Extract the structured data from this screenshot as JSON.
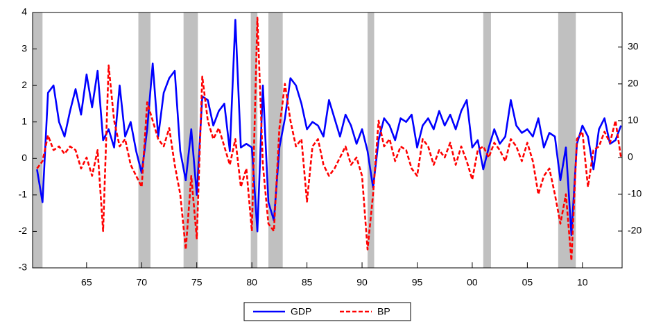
{
  "chart_data": {
    "type": "line",
    "x": [
      1960.5,
      1961,
      1961.5,
      1962,
      1962.5,
      1963,
      1963.5,
      1964,
      1964.5,
      1965,
      1965.5,
      1966,
      1966.5,
      1967,
      1967.5,
      1968,
      1968.5,
      1969,
      1969.5,
      1970,
      1970.5,
      1971,
      1971.5,
      1972,
      1972.5,
      1973,
      1973.5,
      1974,
      1974.5,
      1975,
      1975.5,
      1976,
      1976.5,
      1977,
      1977.5,
      1978,
      1978.5,
      1979,
      1979.5,
      1980,
      1980.5,
      1981,
      1981.5,
      1982,
      1982.5,
      1983,
      1983.5,
      1984,
      1984.5,
      1985,
      1985.5,
      1986,
      1986.5,
      1987,
      1987.5,
      1988,
      1988.5,
      1989,
      1989.5,
      1990,
      1990.5,
      1991,
      1991.5,
      1992,
      1992.5,
      1993,
      1993.5,
      1994,
      1994.5,
      1995,
      1995.5,
      1996,
      1996.5,
      1997,
      1997.5,
      1998,
      1998.5,
      1999,
      1999.5,
      2000,
      2000.5,
      2001,
      2001.5,
      2002,
      2002.5,
      2003,
      2003.5,
      2004,
      2004.5,
      2005,
      2005.5,
      2006,
      2006.5,
      2007,
      2007.5,
      2008,
      2008.5,
      2009,
      2009.5,
      2010,
      2010.5,
      2011,
      2011.5,
      2012,
      2012.5,
      2013,
      2013.5
    ],
    "series": [
      {
        "name": "GDP",
        "color": "#0000ff",
        "line_style": "solid",
        "axis": "y",
        "values": [
          -0.3,
          -1.2,
          1.8,
          2.0,
          1.0,
          0.6,
          1.3,
          1.9,
          1.2,
          2.3,
          1.4,
          2.4,
          0.5,
          0.8,
          0.3,
          2.0,
          0.6,
          1.0,
          0.2,
          -0.4,
          0.8,
          2.6,
          0.6,
          1.8,
          2.2,
          2.4,
          0.2,
          -0.6,
          0.8,
          -1.0,
          1.7,
          1.6,
          0.9,
          1.3,
          1.5,
          0.2,
          3.8,
          0.3,
          0.4,
          0.3,
          -2.0,
          2.0,
          -1.2,
          -1.7,
          0.3,
          1.1,
          2.2,
          2.0,
          1.5,
          0.8,
          1.0,
          0.9,
          0.6,
          1.6,
          1.1,
          0.6,
          1.2,
          0.9,
          0.4,
          0.8,
          0.2,
          -0.8,
          0.5,
          1.1,
          0.9,
          0.5,
          1.1,
          1.0,
          1.2,
          0.3,
          0.9,
          1.1,
          0.8,
          1.3,
          0.9,
          1.2,
          0.8,
          1.3,
          1.6,
          0.3,
          0.5,
          -0.3,
          0.3,
          0.8,
          0.4,
          0.6,
          1.6,
          0.9,
          0.7,
          0.8,
          0.6,
          1.1,
          0.3,
          0.7,
          0.6,
          -0.6,
          0.3,
          -2.1,
          0.4,
          0.9,
          0.6,
          -0.3,
          0.8,
          1.1,
          0.4,
          0.5,
          0.9
        ]
      },
      {
        "name": "BP",
        "color": "#ff0000",
        "line_style": "dashed",
        "axis": "y2",
        "values": [
          -3,
          -1,
          6,
          2,
          3,
          1,
          3,
          2,
          -3,
          0,
          -5,
          2,
          -20,
          25,
          10,
          3,
          5,
          -2,
          -5,
          -8,
          15,
          10,
          5,
          3,
          8,
          -2,
          -10,
          -25,
          -5,
          -22,
          22,
          10,
          5,
          8,
          3,
          -2,
          5,
          -8,
          -3,
          -20,
          38,
          -2,
          -18,
          -20,
          8,
          20,
          10,
          3,
          5,
          -12,
          3,
          5,
          -2,
          -5,
          -3,
          0,
          3,
          -2,
          0,
          -5,
          -25,
          -10,
          10,
          3,
          5,
          -1,
          3,
          2,
          -3,
          -5,
          5,
          3,
          -2,
          2,
          0,
          4,
          -2,
          3,
          -1,
          -6,
          2,
          3,
          0,
          4,
          2,
          -1,
          5,
          3,
          -1,
          4,
          -1,
          -10,
          -5,
          -3,
          -10,
          -18,
          -10,
          -28,
          5,
          7,
          -8,
          2,
          3,
          7,
          4,
          10,
          0
        ]
      }
    ],
    "xlim": [
      1960.1,
      2013.6
    ],
    "xticks": [
      {
        "value": 1965,
        "label": "65"
      },
      {
        "value": 1970,
        "label": "70"
      },
      {
        "value": 1975,
        "label": "75"
      },
      {
        "value": 1980,
        "label": "80"
      },
      {
        "value": 1985,
        "label": "85"
      },
      {
        "value": 1990,
        "label": "90"
      },
      {
        "value": 1995,
        "label": "95"
      },
      {
        "value": 2000,
        "label": "00"
      },
      {
        "value": 2005,
        "label": "05"
      },
      {
        "value": 2010,
        "label": "10"
      }
    ],
    "ylim": [
      -3,
      4
    ],
    "yticks": [
      -3,
      -2,
      -1,
      0,
      1,
      2,
      3,
      4
    ],
    "y2lim": [
      -30,
      39.4
    ],
    "y2ticks": [
      -20,
      -10,
      0,
      10,
      20,
      30
    ],
    "recessions": [
      [
        1960.1,
        1961.0
      ],
      [
        1969.7,
        1970.8
      ],
      [
        1973.8,
        1975.1
      ],
      [
        1979.9,
        1980.5
      ],
      [
        1981.5,
        1982.8
      ],
      [
        1990.5,
        1991.1
      ],
      [
        2001.0,
        2001.7
      ],
      [
        2007.8,
        2009.4
      ]
    ],
    "recession_color": "#c0c0c0",
    "grid": false,
    "legend": "bottom"
  }
}
